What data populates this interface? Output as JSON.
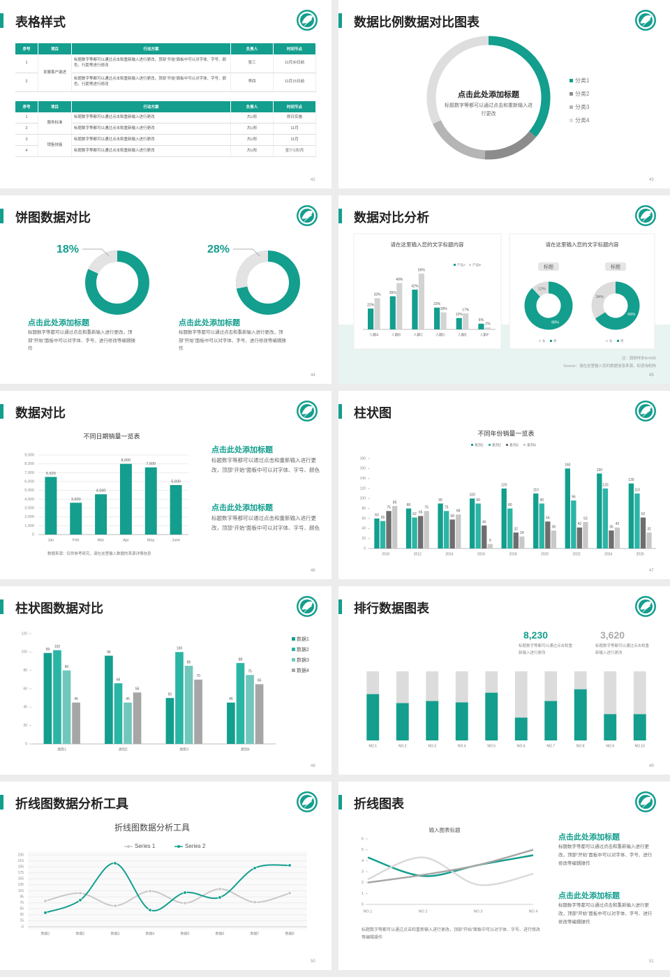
{
  "slides": [
    {
      "title": "表格样式",
      "page": "42",
      "tables": [
        {
          "header": [
            "序号",
            "项目",
            "行动方案",
            "负责人",
            "时间节点"
          ],
          "rows": [
            [
              "1",
              "发展客户激进",
              "标题数字等都可以通过点击和重新输入进行更改，顶部“开始”面板中可以对字体、字号、颜色、行距等进行修改",
              "张三",
              "11月30日前"
            ],
            [
              "2",
              "标题数字等都可以通过点击和重新输入进行更改，顶部“开始”面板中可以对字体、字号、颜色、行距等进行修改",
              "李四",
              "11月15日前"
            ]
          ]
        },
        {
          "header": [
            "序号",
            "项目",
            "行动方案",
            "负责人",
            "时间节点"
          ],
          "rows": [
            [
              "1",
              "服务标准",
              "标题数字等都可以通过点击和重新输入进行更改",
              "大U形",
              "即日实施"
            ],
            [
              "2",
              "标题数字等都可以通过点击和重新输入进行更改",
              "大U形",
              "11月"
            ],
            [
              "3",
              "销售技能",
              "标题数字等都可以通过点击和重新输入进行更改",
              "大U形",
              "11月"
            ],
            [
              "4",
              "标题数字等都可以通过点击和重新输入进行更改",
              "大U形",
              "至少1次/月"
            ]
          ]
        }
      ]
    },
    {
      "title": "数据比例数据对比图表",
      "page": "43",
      "heading": "点击此处添加标题",
      "text": "标题数字等都可以通过点击和重新输入进行更改",
      "chart": {
        "type": "pie",
        "categories": [
          "分类1",
          "分类2",
          "分类3",
          "分类4"
        ],
        "values": [
          36,
          15,
          17,
          32
        ],
        "colors": [
          "#139e8e",
          "#8c8c8c",
          "#b5b5b5",
          "#dedede"
        ]
      }
    },
    {
      "title": "饼图数据对比",
      "page": "44",
      "items": [
        {
          "chart": {
            "type": "pie",
            "values": [
              18
            ],
            "value_labels": [
              "18%"
            ],
            "colors": [
              "#e3e3e3"
            ],
            "color": "#139e8e"
          },
          "heading": "点击此处添加标题",
          "text": "标题数字等都可以通过点击和重新输入进行更改，顶部“开始”面板中可以对字体、字号、进行修改等编辑操作"
        },
        {
          "chart": {
            "type": "pie",
            "values": [
              28
            ],
            "value_labels": [
              "28%"
            ],
            "colors": [
              "#e3e3e3"
            ],
            "color": "#139e8e"
          },
          "heading": "点击此处添加标题",
          "text": "标题数字等都可以通过点击和重新输入进行更改，顶部“开始”面板中可以对字体、字号、进行修改等编辑操作"
        }
      ]
    },
    {
      "title": "数据对比分析",
      "page": "45",
      "chart": {
        "type": "bar",
        "title": "请在这里输入您的文字标题内容",
        "categories": [
          "人群A",
          "人群B",
          "人群C",
          "人群D",
          "人群E",
          "人群F"
        ],
        "series": [
          {
            "name": "产品A",
            "color": "#139e8e",
            "values": [
              22,
              35,
              42,
              23,
              12,
              6
            ],
            "value_labels": [
              "22%",
              "35%",
              "42%",
              "23%",
              "12%",
              "6%"
            ]
          },
          {
            "name": "产品B",
            "color": "#d3d3d3",
            "values": [
              33,
              49,
              59,
              18,
              17,
              2
            ],
            "value_labels": [
              "33%",
              "49%",
              "59%",
              "18%",
              "17%",
              "2%"
            ]
          }
        ]
      },
      "pies_title": "请在这里输入您的文字标题内容",
      "pies": [
        {
          "type": "pie",
          "title": "标题",
          "categories": [
            "女",
            "男"
          ],
          "colors": [
            "#dcdcdc",
            "#139e8e"
          ],
          "values": [
            12,
            88
          ],
          "value_labels": [
            "12%",
            "88%"
          ]
        },
        {
          "type": "pie",
          "title": "标题",
          "categories": [
            "女",
            "男"
          ],
          "colors": [
            "#dcdcdc",
            "#139e8e"
          ],
          "values": [
            34,
            66
          ],
          "value_labels": [
            "34%",
            "66%"
          ]
        }
      ],
      "note": "注：调研样本N=500",
      "source": "Source：请在这里输入您的数据信息来源，如咨询机构"
    },
    {
      "title": "数据对比",
      "page": "46",
      "chart": {
        "type": "bar",
        "title": "不同日期销量一览表",
        "categories": [
          "Jan",
          "Feb",
          "Mar",
          "Apr",
          "May",
          "June"
        ],
        "values": [
          6520,
          3600,
          4560,
          8000,
          7600,
          5600
        ],
        "value_labels": [
          "6,520",
          "3,600",
          "4,560",
          "8,000",
          "7,600",
          "5,600"
        ],
        "color": "#139e8e",
        "ylim": [
          0,
          9000
        ],
        "yticks": [
          0,
          {
            "value": 1000,
            "label": "1,000"
          },
          {
            "value": 2000,
            "label": "2,000"
          },
          {
            "value": 3000,
            "label": "3,000"
          },
          {
            "value": 4000,
            "label": "4,000"
          },
          {
            "value": 5000,
            "label": "5,000"
          },
          {
            "value": 6000,
            "label": "6,000"
          },
          {
            "value": 7000,
            "label": "7,000"
          },
          {
            "value": 8000,
            "label": "8,000"
          },
          {
            "value": 9000,
            "label": "9,000"
          }
        ],
        "grid": true
      },
      "source": "数据来源：仅供参考研究，请在这里输入数据的来源详情信息",
      "blocks": [
        {
          "heading": "点击此处添加标题",
          "text": "标题数字等都可以通过点击和重新输入进行更改，顶部“开始”面板中可以对字体、字号、颜色"
        },
        {
          "heading": "点击此处添加标题",
          "text": "标题数字等都可以通过点击和重新输入进行更改，顶部“开始”面板中可以对字体、字号、颜色"
        }
      ]
    },
    {
      "title": "柱状图",
      "page": "47",
      "chart": {
        "type": "bar",
        "title": "不同年份销量一览表",
        "categories": [
          "2010",
          "2012",
          "2014",
          "2016",
          "2018",
          "2020",
          "2022",
          "2024",
          "2026"
        ],
        "series": [
          {
            "name": "系列1",
            "color": "#139e8e",
            "values": [
              60,
              80,
              90,
              100,
              120,
              110,
              160,
              150,
              130
            ]
          },
          {
            "name": "系列2",
            "color": "#2bb5a5",
            "values": [
              55,
              62,
              75,
              90,
              80,
              90,
              96,
              120,
              110
            ]
          },
          {
            "name": "系列3",
            "color": "#6e6e6e",
            "values": [
              75,
              65,
              58,
              46,
              32,
              54,
              42,
              36,
              62
            ]
          },
          {
            "name": "系列4",
            "color": "#c8c8c8",
            "values": [
              85,
              75,
              68,
              9,
              24,
              36,
              53,
              42,
              32
            ]
          }
        ],
        "ylim": [
          0,
          180
        ],
        "yticks": [
          0,
          20,
          40,
          60,
          80,
          100,
          120,
          140,
          160,
          180
        ]
      }
    },
    {
      "title": "柱状图数据对比",
      "page": "48",
      "chart": {
        "type": "bar",
        "categories": [
          "类别1",
          "类别2",
          "类别3",
          "类别4"
        ],
        "series": [
          {
            "name": "数据1",
            "color": "#139e8e",
            "values": [
              99,
              96,
              50,
              45
            ]
          },
          {
            "name": "数据2",
            "color": "#2bb5a5",
            "values": [
              102,
              66,
              100,
              88
            ]
          },
          {
            "name": "数据3",
            "color": "#72c7bc",
            "values": [
              80,
              45,
              85,
              75
            ]
          },
          {
            "name": "数据4",
            "color": "#a6a6a6",
            "values": [
              45,
              56,
              70,
              65
            ]
          }
        ],
        "ylim": [
          0,
          120
        ],
        "yticks": [
          0,
          20,
          40,
          60,
          80,
          100,
          120
        ]
      }
    },
    {
      "title": "排行数据图表",
      "page": "49",
      "stats": [
        {
          "value": "8,230",
          "text": "标题数字等都可以通过点击和重新输入进行更改"
        },
        {
          "value": "3,620",
          "text": "标题数字等都可以通过点击和重新输入进行更改"
        }
      ],
      "chart": {
        "type": "bar",
        "categories": [
          "NO.1",
          "NO.2",
          "NO.3",
          "NO.4",
          "NO.5",
          "NO.6",
          "NO.7",
          "NO.8",
          "NO.9",
          "NO.10"
        ],
        "values": [
          67,
          54,
          57,
          55,
          69,
          33,
          57,
          74,
          38,
          38
        ],
        "ylim": [
          0,
          100
        ],
        "color": "#139e8e"
      }
    },
    {
      "title": "折线图数据分析工具",
      "page": "50",
      "chart": {
        "type": "line",
        "title": "折线图数据分析工具",
        "categories": [
          "数据1",
          "数据2",
          "数据3",
          "数据4",
          "数据5",
          "数据6",
          "数据7",
          "数据8"
        ],
        "series": [
          {
            "name": "Series 1",
            "color": "#c8c8c8",
            "values": [
              81,
              107,
              65,
              114,
              74,
              121,
              77,
              107
            ]
          },
          {
            "name": "Series 2",
            "color": "#139e8e",
            "values": [
              42,
              84,
              207,
              51,
              109,
              93,
              191,
              200
            ]
          }
        ],
        "ylim": [
          -5,
          235
        ],
        "yticks": [
          -5,
          15,
          35,
          55,
          75,
          95,
          115,
          135,
          155,
          175,
          195,
          215,
          235
        ],
        "grid": true
      }
    },
    {
      "title": "折线图表",
      "page": "51",
      "chart": {
        "type": "line",
        "title": "输入图表标题",
        "categories": [
          "NO.1",
          "NO.2",
          "NO.3",
          "NO.4"
        ],
        "series": [
          {
            "color": "#139e8e",
            "values": [
              4.3,
              2.6,
              3.6,
              4.5
            ]
          },
          {
            "color": "#dadada",
            "values": [
              2.3,
              4.3,
              1.8,
              2.8
            ]
          },
          {
            "color": "#a6a6a6",
            "values": [
              2,
              2.7,
              3.6,
              5
            ]
          }
        ],
        "ylim": [
          0,
          6
        ],
        "yticks": [
          0,
          1,
          2,
          3,
          4,
          5,
          6
        ]
      },
      "text": "标题数字等都可以通过点击和重新输入进行更改，顶部“开始”面板中可以对字体、字号、进行修改等编辑操作",
      "blocks": [
        {
          "heading": "点击此处添加标题",
          "text": "标题数字等都可以通过点击和重新输入进行更改，顶部“开始”面板中可以对字体、字号、进行修改等编辑操作"
        },
        {
          "heading": "点击此处添加标题",
          "text": "标题数字等都可以通过点击和重新输入进行更改，顶部“开始”面板中可以对字体、字号、进行修改等编辑操作"
        }
      ]
    }
  ]
}
